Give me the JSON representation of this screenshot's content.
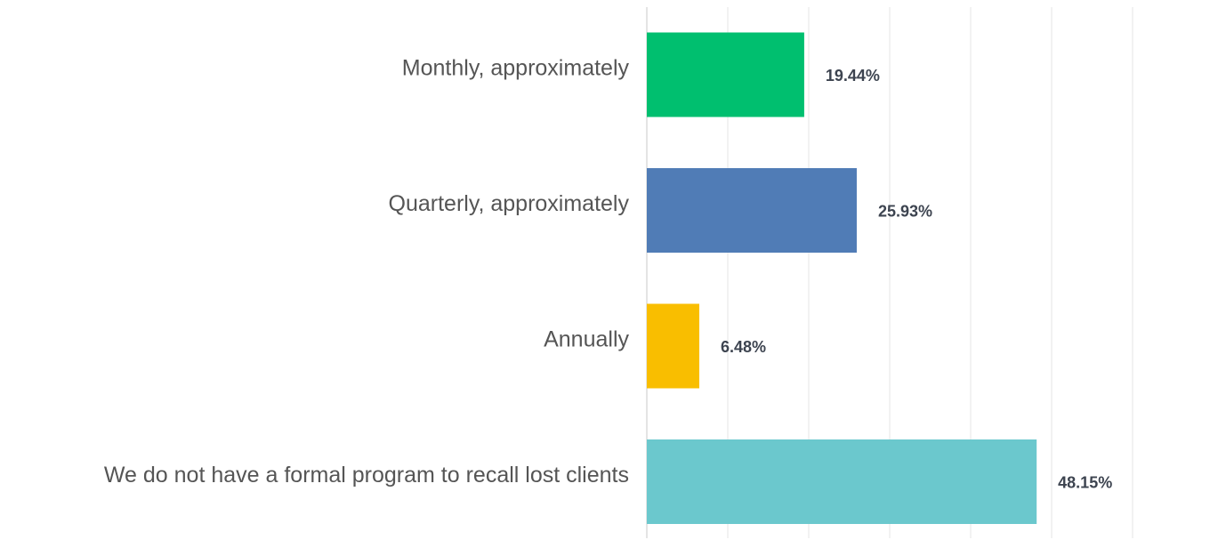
{
  "chart_data": {
    "type": "hbar",
    "categories": [
      "Monthly, approximately",
      "Quarterly, approximately",
      "Annually",
      "We do not have a formal program to recall lost clients"
    ],
    "values": [
      19.44,
      25.93,
      6.48,
      48.15
    ],
    "value_labels": [
      "19.44%",
      "25.93%",
      "6.48%",
      "48.15%"
    ],
    "colors": [
      "#00bf6f",
      "#507cb6",
      "#f9be00",
      "#6bc8cd"
    ],
    "xlim": [
      0,
      70
    ],
    "xticks": [
      0,
      10,
      20,
      30,
      40,
      50,
      60
    ],
    "grid": true
  }
}
